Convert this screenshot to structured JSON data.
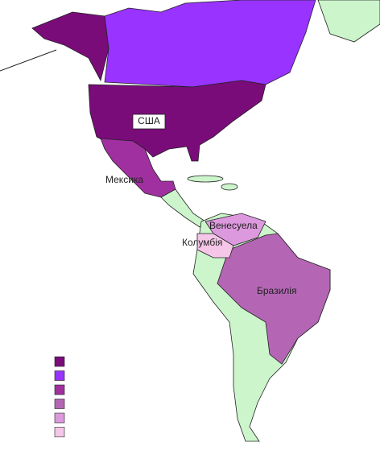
{
  "map": {
    "labels": [
      {
        "text": "США"
      },
      {
        "text": "Мексика"
      },
      {
        "text": "Венесуела"
      },
      {
        "text": "Колумбія"
      },
      {
        "text": "Бразилія"
      }
    ],
    "legend": {
      "colors": [
        "#7a0c7a",
        "#9933ff",
        "#a0309f",
        "#b466b4",
        "#dd99dd",
        "#f5c6e8"
      ]
    }
  }
}
